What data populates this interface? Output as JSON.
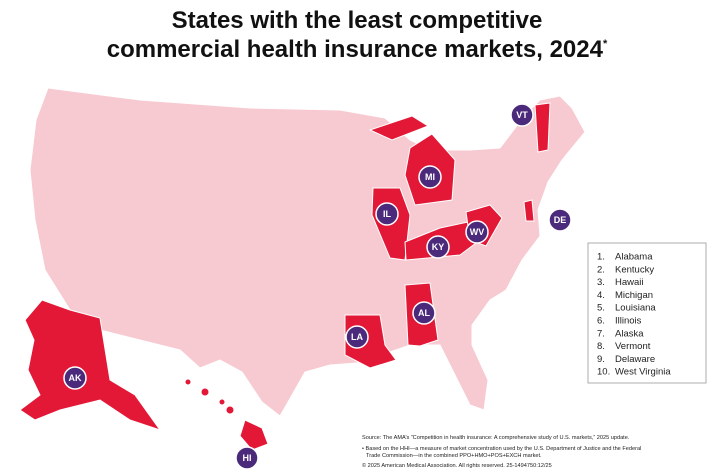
{
  "title": [
    "States with the least competitive",
    "commercial health insurance markets, 2024"
  ],
  "title_mark": "*",
  "state_labels": [
    "VT",
    "MI",
    "DE",
    "IL",
    "KY",
    "WV",
    "LA",
    "AL",
    "AK",
    "HI"
  ],
  "ranking": [
    {
      "number": "1.",
      "state": "Alabama"
    },
    {
      "number": "2.",
      "state": "Kentucky"
    },
    {
      "number": "3.",
      "state": "Hawaii"
    },
    {
      "number": "4.",
      "state": "Michigan"
    },
    {
      "number": "5.",
      "state": "Louisiana"
    },
    {
      "number": "6.",
      "state": "Illinois"
    },
    {
      "number": "7.",
      "state": "Alaska"
    },
    {
      "number": "8.",
      "state": "Vermont"
    },
    {
      "number": "9.",
      "state": "Delaware"
    },
    {
      "number": "10.",
      "state": "West Virginia"
    }
  ],
  "notes": [
    "Source: The AMA’s “Competition in health insurance: A comprehensive study of U.S. markets,” 2025 update.",
    "• Based on the HHI—a measure of market concentration used by the U.S. Department of Justice and the Federal",
    "Trade Commission—in the combined PPO+HMO+POS+EXCH market.",
    "© 2025 American Medical Association. All rights reserved. 25-1494750:12/25"
  ]
}
